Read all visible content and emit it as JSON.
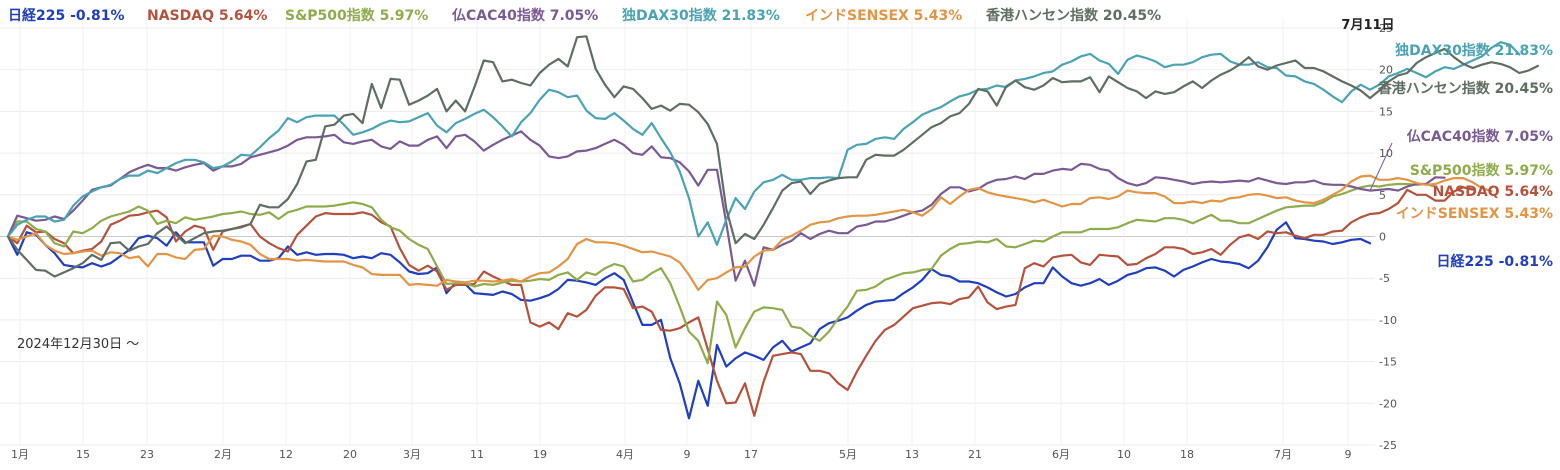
{
  "chart_data": {
    "type": "line",
    "title": "",
    "xlabel": "",
    "ylabel": "",
    "ylim": [
      -25,
      25
    ],
    "y_ticks": [
      25,
      20,
      15,
      10,
      5,
      0,
      -5,
      -10,
      -15,
      -20,
      -25
    ],
    "x_tick_labels": [
      "1月",
      "15",
      "23",
      "2月",
      "12",
      "20",
      "3月",
      "11",
      "19",
      "4月",
      "9",
      "17",
      "5月",
      "13",
      "21",
      "6月",
      "10",
      "18",
      "7月",
      "9"
    ],
    "start_label": "2024年12月30日 ～",
    "date_label": "7月11日",
    "grid": true,
    "legend_position": "top-left",
    "zero_line": true,
    "series": [
      {
        "name": "日経225",
        "legend_label": "日経225 -0.81%",
        "end_label": "日経225 -0.81%",
        "color": "#1f3fbf",
        "final_value": -0.81,
        "values": [
          0.0,
          -2.2,
          0.5,
          0.2,
          -1.0,
          -2.0,
          -3.4,
          -3.6,
          -3.7,
          -3.2,
          -3.6,
          -3.2,
          -2.4,
          -1.6,
          -0.2,
          0.1,
          -0.2,
          -1.1,
          0.5,
          -0.7,
          -0.7,
          -0.7,
          -3.5,
          -2.7,
          -2.7,
          -2.3,
          -2.3,
          -2.9,
          -2.9,
          -2.6,
          -1.2,
          -2.2,
          -1.9,
          -2.2,
          -2.1,
          -2.1,
          -2.2,
          -2.6,
          -2.4,
          -2.6,
          -2.0,
          -2.2,
          -3.1,
          -4.2,
          -4.5,
          -4.4,
          -3.7,
          -6.8,
          -5.5,
          -5.7,
          -6.8,
          -6.9,
          -7.0,
          -6.6,
          -6.9,
          -7.6,
          -7.7,
          -7.4,
          -7.0,
          -6.3,
          -5.2,
          -5.3,
          -5.5,
          -5.8,
          -5.0,
          -4.4,
          -5.2,
          -7.9,
          -10.6,
          -10.6,
          -10.0,
          -14.6,
          -17.6,
          -21.8,
          -17.3,
          -20.3,
          -13.0,
          -15.6,
          -14.6,
          -13.9,
          -14.3,
          -14.8,
          -13.3,
          -12.5,
          -13.8,
          -13.3,
          -12.8,
          -11.1,
          -10.4,
          -10.1,
          -9.7,
          -8.9,
          -8.2,
          -7.8,
          -7.7,
          -7.6,
          -6.8,
          -6.1,
          -5.2,
          -3.9,
          -4.6,
          -4.8,
          -5.4,
          -5.4,
          -5.6,
          -6.1,
          -6.7,
          -7.2,
          -6.9,
          -6.1,
          -5.6,
          -5.6,
          -3.7,
          -4.8,
          -5.6,
          -5.9,
          -5.6,
          -5.1,
          -5.8,
          -5.3,
          -4.6,
          -4.3,
          -3.8,
          -3.7,
          -4.1,
          -4.8,
          -4.0,
          -3.6,
          -3.1,
          -2.7,
          -3.0,
          -3.1,
          -3.3,
          -3.8,
          -2.9,
          -1.3,
          0.8,
          1.7,
          -0.2,
          -0.3,
          -0.5,
          -0.6,
          -0.9,
          -0.7,
          -0.4,
          -0.3,
          -0.81
        ]
      },
      {
        "name": "NASDAQ",
        "legend_label": "NASDAQ 5.64%",
        "end_label": "NASDAQ 5.64%",
        "color": "#b5523b",
        "final_value": 5.64,
        "values": [
          0.0,
          -0.8,
          1.3,
          0.5,
          0.6,
          -0.3,
          -0.8,
          -2.0,
          -1.7,
          -1.5,
          -0.6,
          1.4,
          1.9,
          2.5,
          2.6,
          2.9,
          3.1,
          2.3,
          -0.6,
          0.6,
          1.3,
          1.0,
          -1.6,
          0.6,
          0.9,
          1.2,
          1.5,
          0.0,
          -0.8,
          -1.4,
          -1.8,
          0.2,
          1.3,
          2.4,
          2.8,
          2.7,
          2.7,
          2.7,
          2.9,
          2.6,
          1.7,
          1.2,
          -1.4,
          -3.4,
          -4.1,
          -3.5,
          -4.2,
          -6.4,
          -5.8,
          -5.8,
          -5.7,
          -4.2,
          -4.8,
          -5.3,
          -5.8,
          -5.8,
          -10.3,
          -10.8,
          -10.3,
          -11.1,
          -9.2,
          -9.6,
          -8.8,
          -7.1,
          -6.1,
          -6.1,
          -6.3,
          -8.6,
          -8.4,
          -9.0,
          -11.2,
          -11.3,
          -11.0,
          -10.3,
          -9.7,
          -13.5,
          -17.3,
          -20.0,
          -19.9,
          -17.6,
          -21.5,
          -17.4,
          -14.3,
          -14.1,
          -13.9,
          -14.1,
          -16.1,
          -16.1,
          -16.4,
          -17.6,
          -18.4,
          -16.2,
          -14.3,
          -12.5,
          -11.2,
          -10.6,
          -9.6,
          -8.6,
          -8.3,
          -8.0,
          -7.9,
          -8.1,
          -7.5,
          -7.3,
          -6.0,
          -7.9,
          -8.7,
          -8.4,
          -8.2,
          -3.8,
          -3.2,
          -3.6,
          -2.5,
          -2.3,
          -2.2,
          -3.1,
          -3.4,
          -2.2,
          -2.3,
          -2.4,
          -3.4,
          -3.3,
          -2.6,
          -2.1,
          -1.3,
          -1.3,
          -1.5,
          -2.1,
          -1.9,
          -1.5,
          -2.2,
          -1.0,
          -0.1,
          0.2,
          -0.3,
          0.6,
          0.4,
          0.5,
          0.1,
          -0.2,
          0.2,
          0.2,
          0.6,
          0.7,
          1.7,
          2.3,
          2.7,
          2.8,
          3.3,
          4.0,
          5.6,
          5.0,
          5.0,
          4.3,
          4.3,
          5.4,
          5.9,
          5.64
        ]
      },
      {
        "name": "S&P500指数",
        "legend_label": "S&P500指数 5.97%",
        "end_label": "S&P500指数 5.97%",
        "color": "#8fac4c",
        "final_value": 5.97,
        "values": [
          0.0,
          1.8,
          1.8,
          0.9,
          0.6,
          -0.8,
          -1.2,
          0.6,
          0.4,
          1.0,
          1.9,
          2.4,
          2.7,
          3.0,
          3.6,
          3.1,
          1.5,
          1.9,
          1.6,
          2.3,
          2.0,
          2.2,
          2.4,
          2.7,
          2.8,
          3.0,
          2.7,
          2.6,
          2.9,
          2.1,
          2.9,
          3.2,
          3.6,
          3.6,
          3.6,
          3.7,
          3.9,
          4.1,
          3.9,
          3.5,
          2.0,
          1.1,
          0.7,
          -0.3,
          -1.0,
          -1.5,
          -3.6,
          -5.7,
          -5.6,
          -5.6,
          -6.0,
          -5.7,
          -5.8,
          -5.5,
          -5.3,
          -5.4,
          -5.3,
          -5.1,
          -5.2,
          -4.6,
          -4.3,
          -5.2,
          -4.3,
          -4.6,
          -3.8,
          -3.3,
          -3.6,
          -5.4,
          -5.2,
          -4.4,
          -3.8,
          -5.6,
          -8.4,
          -11.4,
          -12.5,
          -15.2,
          -7.8,
          -9.4,
          -13.3,
          -11.0,
          -9.0,
          -8.5,
          -8.6,
          -8.8,
          -10.8,
          -11.0,
          -11.9,
          -12.5,
          -11.4,
          -9.8,
          -8.4,
          -6.5,
          -6.4,
          -6.0,
          -5.2,
          -4.8,
          -4.4,
          -4.3,
          -4.0,
          -3.9,
          -2.3,
          -1.5,
          -0.9,
          -0.8,
          -0.6,
          -0.7,
          -0.3,
          -1.2,
          -1.3,
          -0.9,
          -0.5,
          -0.6,
          0.0,
          0.5,
          0.5,
          0.5,
          0.9,
          0.9,
          0.9,
          1.1,
          1.6,
          2.0,
          1.9,
          1.8,
          2.2,
          2.2,
          2.0,
          1.6,
          2.1,
          2.6,
          1.9,
          1.9,
          1.6,
          1.6,
          2.1,
          2.6,
          3.1,
          3.5,
          3.6,
          3.7,
          3.7,
          4.1,
          4.8,
          5.1,
          5.5,
          5.9,
          6.1,
          6.0,
          6.2,
          6.3,
          6.3,
          6.2,
          6.3,
          5.97
        ]
      },
      {
        "name": "仏CAC40指数",
        "legend_label": "仏CAC40指数 7.05%",
        "end_label": "仏CAC40指数 7.05%",
        "color": "#7b5a94",
        "final_value": 7.05,
        "values": [
          0.0,
          2.5,
          2.2,
          1.9,
          2.0,
          2.4,
          2.1,
          3.1,
          4.3,
          5.6,
          5.9,
          6.1,
          6.9,
          7.7,
          8.2,
          8.6,
          8.2,
          8.2,
          7.9,
          8.3,
          8.6,
          8.8,
          7.9,
          8.4,
          8.4,
          8.7,
          9.5,
          9.8,
          10.1,
          10.4,
          10.9,
          11.6,
          11.9,
          11.9,
          12.0,
          12.2,
          11.3,
          11.1,
          11.4,
          11.6,
          10.8,
          10.5,
          11.4,
          10.9,
          10.9,
          11.6,
          12.0,
          10.6,
          12.0,
          12.2,
          11.4,
          10.3,
          11.0,
          11.6,
          12.1,
          12.6,
          11.6,
          10.9,
          9.6,
          9.4,
          9.6,
          10.2,
          10.3,
          10.6,
          11.1,
          11.6,
          11.0,
          10.0,
          9.8,
          10.8,
          9.5,
          9.4,
          8.9,
          7.8,
          6.1,
          8.0,
          8.0,
          1.6,
          -5.3,
          -2.9,
          -5.9,
          -1.3,
          -1.6,
          -1.0,
          -0.5,
          0.4,
          -0.3,
          0.3,
          0.7,
          0.4,
          0.4,
          1.2,
          1.4,
          1.8,
          1.8,
          2.1,
          2.5,
          2.9,
          3.1,
          3.8,
          5.1,
          5.9,
          5.9,
          5.4,
          5.7,
          6.4,
          6.8,
          6.9,
          7.2,
          6.9,
          7.5,
          7.5,
          7.9,
          8.1,
          8.0,
          8.7,
          8.6,
          8.1,
          7.9,
          7.0,
          6.4,
          6.1,
          6.4,
          7.1,
          7.0,
          6.8,
          6.6,
          6.3,
          6.5,
          6.6,
          6.5,
          6.6,
          6.7,
          6.6,
          7.0,
          6.7,
          6.4,
          6.3,
          6.5,
          6.5,
          6.7,
          6.3,
          6.2,
          6.2,
          6.0,
          5.7,
          5.5,
          5.6,
          5.7,
          5.5,
          6.0,
          6.3,
          6.3,
          7.1,
          7.05
        ]
      },
      {
        "name": "独DAX30指数",
        "legend_label": "独DAX30指数 21.83%",
        "end_label": "独DAX30指数 21.83%",
        "color": "#4aa3b5",
        "final_value": 21.83,
        "values": [
          0.0,
          1.4,
          2.0,
          2.4,
          2.4,
          1.8,
          2.0,
          3.7,
          4.8,
          5.4,
          5.9,
          6.2,
          6.9,
          7.3,
          7.3,
          7.9,
          7.6,
          8.2,
          8.8,
          9.2,
          9.2,
          8.9,
          8.2,
          8.4,
          9.0,
          9.8,
          9.7,
          10.7,
          11.8,
          12.7,
          14.2,
          13.7,
          14.3,
          14.5,
          14.5,
          14.5,
          13.4,
          12.2,
          12.5,
          12.9,
          13.5,
          13.9,
          13.7,
          13.8,
          14.3,
          14.8,
          13.3,
          12.5,
          13.6,
          14.1,
          14.7,
          15.2,
          14.3,
          13.2,
          12.0,
          13.7,
          14.8,
          16.4,
          17.6,
          17.3,
          16.7,
          16.9,
          15.1,
          14.2,
          14.1,
          14.8,
          13.9,
          12.9,
          12.2,
          13.6,
          11.8,
          10.1,
          7.8,
          4.6,
          0.0,
          1.7,
          -1.0,
          2.0,
          4.6,
          3.3,
          5.4,
          6.5,
          6.8,
          7.4,
          6.8,
          6.8,
          7.0,
          7.0,
          7.1,
          7.0,
          10.4,
          11.0,
          11.1,
          11.7,
          11.9,
          11.7,
          12.9,
          13.7,
          14.6,
          15.1,
          15.5,
          16.2,
          16.8,
          17.1,
          17.6,
          17.7,
          18.1,
          17.9,
          18.7,
          18.9,
          19.2,
          19.6,
          19.8,
          20.6,
          21.0,
          21.6,
          21.9,
          21.1,
          20.7,
          19.5,
          21.2,
          21.7,
          21.4,
          21.0,
          20.3,
          20.6,
          20.6,
          20.9,
          21.5,
          21.8,
          21.9,
          21.0,
          20.6,
          20.6,
          20.9,
          20.3,
          20.2,
          19.3,
          19.2,
          18.6,
          18.3,
          17.6,
          16.8,
          16.1,
          17.4,
          18.2,
          17.6,
          18.2,
          19.2,
          19.6,
          20.1,
          19.6,
          19.1,
          19.8,
          20.3,
          20.1,
          20.6,
          21.1,
          21.6,
          22.6,
          23.3,
          23.0,
          21.83
        ]
      },
      {
        "name": "インドSENSEX",
        "legend_label": "インドSENSEX 5.43%",
        "end_label": "インドSENSEX 5.43%",
        "color": "#e39445",
        "final_value": 5.43,
        "values": [
          0.0,
          -0.4,
          0.0,
          0.4,
          -1.0,
          -1.7,
          -2.1,
          -2.0,
          -1.8,
          -1.7,
          -2.3,
          -1.9,
          -2.0,
          -2.6,
          -2.4,
          -3.6,
          -2.1,
          -2.1,
          -2.5,
          -2.7,
          -1.6,
          -1.5,
          0.1,
          0.0,
          -0.4,
          -0.6,
          -1.0,
          -2.1,
          -2.7,
          -2.7,
          -2.7,
          -2.9,
          -2.8,
          -2.9,
          -3.0,
          -3.0,
          -3.0,
          -3.4,
          -3.7,
          -4.5,
          -4.6,
          -4.6,
          -4.6,
          -5.8,
          -5.7,
          -5.8,
          -5.9,
          -5.2,
          -5.4,
          -5.5,
          -5.3,
          -5.3,
          -5.4,
          -5.3,
          -5.1,
          -5.4,
          -4.8,
          -4.4,
          -4.3,
          -3.6,
          -2.7,
          -0.9,
          -0.3,
          -0.7,
          -0.7,
          -0.8,
          -1.1,
          -1.5,
          -1.9,
          -1.8,
          -2.1,
          -2.4,
          -3.1,
          -4.6,
          -6.4,
          -5.2,
          -5.0,
          -4.3,
          -3.7,
          -3.6,
          -2.4,
          -1.7,
          -1.6,
          -0.4,
          0.1,
          0.7,
          1.4,
          1.7,
          1.8,
          2.2,
          2.4,
          2.5,
          2.5,
          2.6,
          2.8,
          3.0,
          3.2,
          2.9,
          2.5,
          3.3,
          4.7,
          3.9,
          4.8,
          5.6,
          5.8,
          5.3,
          5.0,
          4.8,
          4.6,
          4.4,
          4.1,
          4.4,
          4.0,
          3.6,
          3.9,
          3.9,
          4.6,
          4.7,
          4.5,
          4.8,
          5.5,
          5.3,
          5.2,
          5.2,
          4.8,
          4.0,
          4.0,
          4.2,
          4.0,
          4.3,
          4.2,
          4.6,
          4.7,
          5.0,
          5.1,
          4.9,
          4.6,
          4.7,
          4.3,
          4.1,
          4.0,
          4.4,
          5.0,
          5.6,
          6.6,
          7.2,
          7.3,
          6.8,
          6.8,
          7.0,
          6.8,
          6.4,
          6.2,
          6.3,
          6.7,
          7.0,
          7.0,
          6.5,
          5.8,
          5.43
        ]
      },
      {
        "name": "香港ハンセン指数",
        "legend_label": "香港ハンセン指数 20.45%",
        "end_label": "香港ハンセン指数 20.45%",
        "color": "#5f6e62",
        "final_value": 20.45,
        "values": [
          0.0,
          -1.6,
          -2.8,
          -4.0,
          -4.1,
          -4.8,
          -4.3,
          -3.8,
          -3.2,
          -2.2,
          -2.8,
          -0.8,
          -0.7,
          -1.7,
          -1.2,
          -0.9,
          0.4,
          1.2,
          0.2,
          -0.8,
          -0.2,
          0.4,
          0.6,
          0.7,
          0.9,
          1.1,
          1.5,
          3.8,
          3.5,
          3.5,
          4.5,
          6.3,
          9.0,
          9.2,
          13.2,
          13.4,
          14.5,
          14.7,
          13.6,
          18.3,
          15.4,
          18.9,
          18.8,
          15.8,
          16.3,
          16.9,
          17.7,
          15.0,
          16.3,
          15.0,
          17.9,
          21.1,
          20.9,
          18.6,
          18.8,
          18.4,
          18.1,
          19.6,
          20.6,
          21.3,
          20.4,
          23.9,
          24.0,
          20.1,
          18.2,
          16.7,
          18.0,
          17.7,
          16.6,
          15.3,
          15.7,
          15.1,
          15.9,
          15.8,
          14.9,
          13.5,
          11.1,
          3.3,
          -0.8,
          0.3,
          -0.3,
          1.4,
          3.4,
          5.5,
          6.4,
          6.6,
          5.1,
          6.3,
          6.7,
          7.0,
          7.1,
          7.1,
          9.2,
          9.8,
          9.7,
          9.7,
          10.4,
          11.3,
          12.2,
          13.1,
          13.6,
          14.4,
          14.8,
          15.9,
          17.7,
          17.4,
          15.7,
          18.0,
          18.7,
          17.9,
          17.6,
          18.1,
          19.0,
          18.5,
          18.6,
          18.6,
          19.1,
          17.3,
          19.2,
          18.5,
          17.8,
          17.4,
          16.6,
          17.4,
          17.1,
          17.3,
          18.0,
          18.6,
          17.8,
          18.7,
          19.4,
          19.9,
          20.6,
          21.5,
          20.4,
          20.0,
          20.5,
          20.8,
          21.1,
          20.2,
          20.2,
          19.8,
          19.2,
          18.6,
          18.1,
          17.5,
          16.6,
          17.5,
          18.6,
          19.3,
          19.6,
          20.8,
          21.5,
          22.0,
          22.5,
          21.5,
          20.7,
          20.2,
          20.6,
          20.9,
          20.7,
          20.3,
          19.6,
          19.9,
          20.45
        ]
      }
    ]
  }
}
